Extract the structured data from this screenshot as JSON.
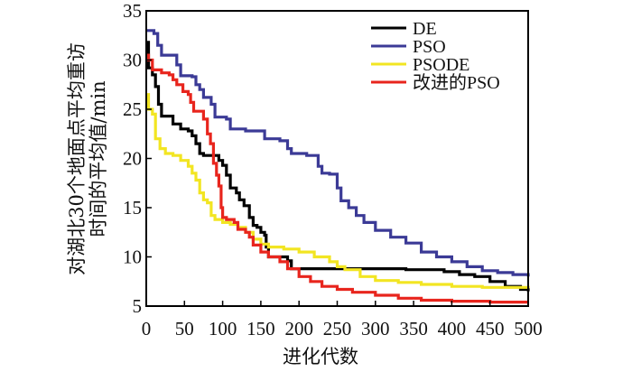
{
  "chart_data": {
    "type": "line",
    "title": "",
    "xlabel": "进化代数",
    "ylabel_line1": "对湖北30个地面点平均重访",
    "ylabel_line2": "时间的平均值/min",
    "xlim": [
      0,
      500
    ],
    "ylim": [
      5,
      35
    ],
    "xticks": [
      "0",
      "50",
      "100",
      "150",
      "200",
      "250",
      "300",
      "350",
      "400",
      "450",
      "500"
    ],
    "yticks": [
      "5",
      "10",
      "15",
      "20",
      "25",
      "30",
      "35"
    ],
    "grid": false,
    "legend_position": "top-right",
    "step": true,
    "series": [
      {
        "name": "DE",
        "color": "#000000",
        "points": [
          [
            0,
            31.8
          ],
          [
            3,
            29.2
          ],
          [
            8,
            28.5
          ],
          [
            12,
            27.3
          ],
          [
            16,
            25.5
          ],
          [
            20,
            24.3
          ],
          [
            30,
            24.3
          ],
          [
            35,
            23.5
          ],
          [
            45,
            23.0
          ],
          [
            55,
            22.8
          ],
          [
            60,
            22.3
          ],
          [
            65,
            21.5
          ],
          [
            70,
            20.5
          ],
          [
            75,
            20.3
          ],
          [
            90,
            20.3
          ],
          [
            95,
            19.8
          ],
          [
            100,
            19.3
          ],
          [
            105,
            18.3
          ],
          [
            110,
            17.0
          ],
          [
            118,
            16.5
          ],
          [
            122,
            15.8
          ],
          [
            128,
            15.2
          ],
          [
            135,
            14.0
          ],
          [
            140,
            13.2
          ],
          [
            145,
            13.0
          ],
          [
            150,
            12.5
          ],
          [
            155,
            12.2
          ],
          [
            157,
            11.0
          ],
          [
            160,
            10.0
          ],
          [
            175,
            10.0
          ],
          [
            185,
            9.6
          ],
          [
            190,
            8.8
          ],
          [
            250,
            8.8
          ],
          [
            300,
            8.8
          ],
          [
            340,
            8.7
          ],
          [
            390,
            8.5
          ],
          [
            410,
            8.2
          ],
          [
            430,
            8.0
          ],
          [
            450,
            7.5
          ],
          [
            470,
            7.0
          ],
          [
            490,
            6.7
          ],
          [
            500,
            6.5
          ]
        ]
      },
      {
        "name": "PSO",
        "color": "#3b3a96",
        "points": [
          [
            0,
            33.0
          ],
          [
            10,
            32.7
          ],
          [
            15,
            31.5
          ],
          [
            20,
            30.5
          ],
          [
            35,
            30.5
          ],
          [
            40,
            29.5
          ],
          [
            45,
            28.4
          ],
          [
            60,
            28.3
          ],
          [
            65,
            27.5
          ],
          [
            70,
            27.0
          ],
          [
            75,
            26.2
          ],
          [
            85,
            25.5
          ],
          [
            90,
            24.2
          ],
          [
            105,
            24.0
          ],
          [
            110,
            23.0
          ],
          [
            130,
            22.8
          ],
          [
            145,
            22.8
          ],
          [
            155,
            22.0
          ],
          [
            175,
            21.8
          ],
          [
            185,
            21.0
          ],
          [
            190,
            20.5
          ],
          [
            210,
            20.3
          ],
          [
            225,
            19.2
          ],
          [
            230,
            18.5
          ],
          [
            240,
            18.4
          ],
          [
            250,
            17.0
          ],
          [
            255,
            15.7
          ],
          [
            265,
            15.0
          ],
          [
            275,
            14.2
          ],
          [
            285,
            13.5
          ],
          [
            300,
            12.7
          ],
          [
            320,
            12.0
          ],
          [
            340,
            11.4
          ],
          [
            360,
            10.5
          ],
          [
            380,
            10.0
          ],
          [
            400,
            9.5
          ],
          [
            420,
            9.0
          ],
          [
            440,
            8.6
          ],
          [
            460,
            8.4
          ],
          [
            480,
            8.2
          ],
          [
            500,
            8.0
          ]
        ]
      },
      {
        "name": "PSODE",
        "color": "#f2e522",
        "points": [
          [
            0,
            26.5
          ],
          [
            3,
            25.0
          ],
          [
            8,
            24.5
          ],
          [
            12,
            22.0
          ],
          [
            18,
            21.0
          ],
          [
            25,
            20.5
          ],
          [
            35,
            20.3
          ],
          [
            45,
            19.8
          ],
          [
            55,
            19.2
          ],
          [
            60,
            18.5
          ],
          [
            65,
            17.8
          ],
          [
            70,
            16.5
          ],
          [
            75,
            15.8
          ],
          [
            80,
            15.5
          ],
          [
            85,
            14.2
          ],
          [
            90,
            13.8
          ],
          [
            100,
            13.5
          ],
          [
            110,
            13.3
          ],
          [
            120,
            13.0
          ],
          [
            130,
            12.5
          ],
          [
            140,
            11.8
          ],
          [
            150,
            11.3
          ],
          [
            160,
            11.0
          ],
          [
            180,
            10.8
          ],
          [
            200,
            10.5
          ],
          [
            220,
            10.0
          ],
          [
            240,
            9.5
          ],
          [
            250,
            9.0
          ],
          [
            260,
            8.7
          ],
          [
            280,
            8.0
          ],
          [
            300,
            7.6
          ],
          [
            330,
            7.4
          ],
          [
            360,
            7.2
          ],
          [
            400,
            7.0
          ],
          [
            440,
            6.9
          ],
          [
            470,
            6.9
          ],
          [
            500,
            6.8
          ]
        ]
      },
      {
        "name": "改进的PSO",
        "color": "#e8251d",
        "points": [
          [
            0,
            30.5
          ],
          [
            3,
            30.0
          ],
          [
            8,
            29.0
          ],
          [
            12,
            29.0
          ],
          [
            20,
            28.7
          ],
          [
            30,
            28.5
          ],
          [
            35,
            28.0
          ],
          [
            40,
            27.5
          ],
          [
            48,
            26.8
          ],
          [
            55,
            26.5
          ],
          [
            58,
            25.7
          ],
          [
            62,
            24.8
          ],
          [
            70,
            24.8
          ],
          [
            75,
            24.0
          ],
          [
            80,
            22.5
          ],
          [
            84,
            21.5
          ],
          [
            88,
            19.5
          ],
          [
            92,
            18.3
          ],
          [
            95,
            17.2
          ],
          [
            98,
            15.0
          ],
          [
            100,
            14.0
          ],
          [
            105,
            13.8
          ],
          [
            115,
            13.5
          ],
          [
            120,
            12.8
          ],
          [
            130,
            12.5
          ],
          [
            135,
            12.0
          ],
          [
            140,
            11.2
          ],
          [
            150,
            10.5
          ],
          [
            160,
            10.0
          ],
          [
            175,
            9.5
          ],
          [
            185,
            8.8
          ],
          [
            200,
            8.0
          ],
          [
            215,
            7.5
          ],
          [
            230,
            7.0
          ],
          [
            250,
            6.7
          ],
          [
            270,
            6.4
          ],
          [
            300,
            6.1
          ],
          [
            330,
            5.8
          ],
          [
            360,
            5.6
          ],
          [
            400,
            5.5
          ],
          [
            450,
            5.4
          ],
          [
            500,
            5.4
          ]
        ]
      }
    ]
  }
}
